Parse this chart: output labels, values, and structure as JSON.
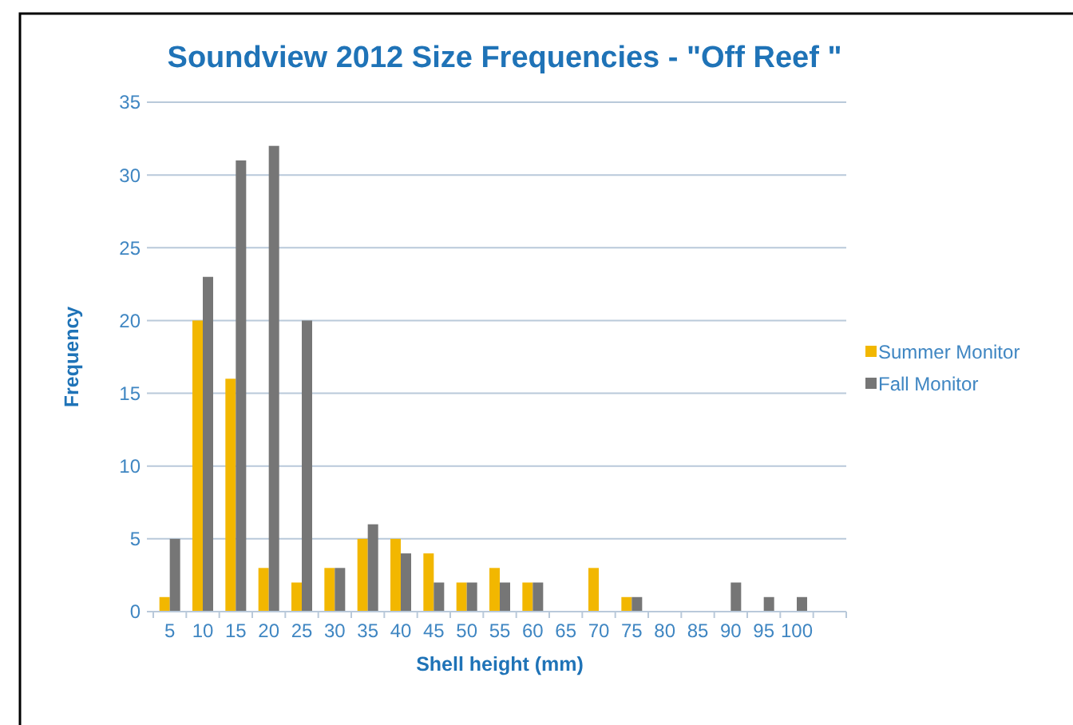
{
  "chart_data": {
    "type": "bar",
    "title": "Soundview 2012 Size Frequencies - \"Off Reef \"",
    "xlabel": "Shell height (mm)",
    "ylabel": "Frequency",
    "categories": [
      "5",
      "10",
      "15",
      "20",
      "25",
      "30",
      "35",
      "40",
      "45",
      "50",
      "55",
      "60",
      "65",
      "70",
      "75",
      "80",
      "85",
      "90",
      "95",
      "100",
      null
    ],
    "series": [
      {
        "name": "Summer Monitor",
        "color": "#f2b700",
        "values": [
          1,
          20,
          16,
          3,
          2,
          3,
          5,
          5,
          4,
          2,
          3,
          2,
          0,
          3,
          1,
          0,
          0,
          0,
          0,
          0,
          0
        ]
      },
      {
        "name": "Fall Monitor",
        "color": "#767676",
        "values": [
          5,
          23,
          31,
          32,
          20,
          3,
          6,
          4,
          2,
          2,
          2,
          2,
          0,
          0,
          1,
          0,
          0,
          2,
          1,
          1,
          0
        ]
      }
    ],
    "ylim": [
      0,
      35
    ],
    "yticks": [
      0,
      5,
      10,
      15,
      20,
      25,
      30,
      35
    ],
    "grid": "y",
    "legend": "right"
  }
}
